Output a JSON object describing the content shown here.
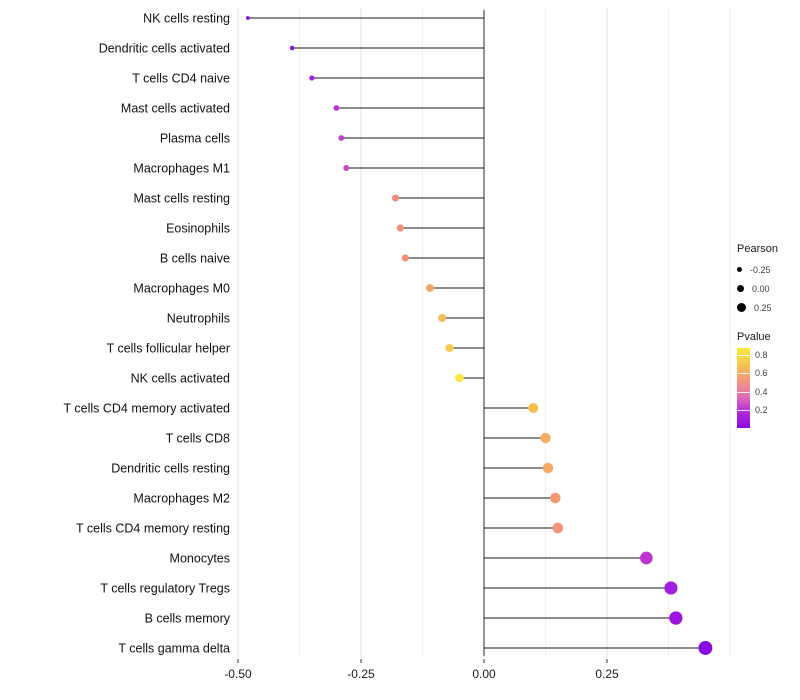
{
  "chart_data": {
    "type": "lollipop",
    "title": "",
    "xlabel": "",
    "ylabel": "",
    "x_ticks": [
      -0.5,
      -0.25,
      0,
      0.25
    ],
    "x_tick_labels": [
      "-0.50",
      "-0.25",
      "0.00",
      "0.25"
    ],
    "x_minor_ticks": [
      -0.375,
      -0.125,
      0.125,
      0.375,
      0.5
    ],
    "xlim": [
      -0.55,
      0.51
    ],
    "grid": true,
    "zero_line": true,
    "points": [
      {
        "label": "NK cells resting",
        "pearson": -0.48,
        "pvalue": 0.03,
        "color": "#8F0BE0"
      },
      {
        "label": "Dendritic cells activated",
        "pearson": -0.39,
        "pvalue": 0.06,
        "color": "#9A15DF"
      },
      {
        "label": "T cells CD4 naive",
        "pearson": -0.35,
        "pvalue": 0.1,
        "color": "#A922DB"
      },
      {
        "label": "Mast cells activated",
        "pearson": -0.3,
        "pvalue": 0.13,
        "color": "#B933CF"
      },
      {
        "label": "Plasma cells",
        "pearson": -0.29,
        "pvalue": 0.15,
        "color": "#C13FC9"
      },
      {
        "label": "Macrophages M1",
        "pearson": -0.28,
        "pvalue": 0.17,
        "color": "#C847C2"
      },
      {
        "label": "Mast cells resting",
        "pearson": -0.18,
        "pvalue": 0.47,
        "color": "#EE8C7D"
      },
      {
        "label": "Eosinophils",
        "pearson": -0.17,
        "pvalue": 0.5,
        "color": "#F0907A"
      },
      {
        "label": "B cells naive",
        "pearson": -0.16,
        "pvalue": 0.52,
        "color": "#F19377"
      },
      {
        "label": "Macrophages M0",
        "pearson": -0.11,
        "pvalue": 0.6,
        "color": "#F4A568"
      },
      {
        "label": "Neutrophils",
        "pearson": -0.085,
        "pvalue": 0.68,
        "color": "#F6BA58"
      },
      {
        "label": "T cells follicular helper",
        "pearson": -0.07,
        "pvalue": 0.75,
        "color": "#F7CC4C"
      },
      {
        "label": "NK cells activated",
        "pearson": -0.05,
        "pvalue": 0.82,
        "color": "#F8E83B"
      },
      {
        "label": "T cells CD4 memory activated",
        "pearson": 0.1,
        "pvalue": 0.7,
        "color": "#F6C054"
      },
      {
        "label": "T cells CD8",
        "pearson": 0.125,
        "pvalue": 0.63,
        "color": "#F5AE62"
      },
      {
        "label": "Dendritic cells resting",
        "pearson": 0.13,
        "pvalue": 0.61,
        "color": "#F4A966"
      },
      {
        "label": "Macrophages M2",
        "pearson": 0.145,
        "pvalue": 0.56,
        "color": "#F29C72"
      },
      {
        "label": "T cells CD4 memory resting",
        "pearson": 0.15,
        "pvalue": 0.53,
        "color": "#F19578"
      },
      {
        "label": "Monocytes",
        "pearson": 0.33,
        "pvalue": 0.14,
        "color": "#BB35CE"
      },
      {
        "label": "T cells regulatory  Tregs",
        "pearson": 0.38,
        "pvalue": 0.08,
        "color": "#A51DDD"
      },
      {
        "label": "B cells memory",
        "pearson": 0.39,
        "pvalue": 0.06,
        "color": "#9B14DF"
      },
      {
        "label": "T cells gamma delta",
        "pearson": 0.45,
        "pvalue": 0.02,
        "color": "#8A08E2"
      }
    ],
    "legend": {
      "size": {
        "title": "Pearson",
        "entries": [
          {
            "label": "-0.25",
            "value": -0.25
          },
          {
            "label": "0.00",
            "value": 0
          },
          {
            "label": "0.25",
            "value": 0.25
          }
        ]
      },
      "color": {
        "title": "Pvalue",
        "ticks": [
          0.8,
          0.6,
          0.4,
          0.2
        ],
        "tick_labels": [
          "0.8",
          "0.6",
          "0.4",
          "0.2"
        ],
        "bar_top_value": 0.88,
        "bar_bottom_value": 0.0,
        "gradient": [
          "#F9E93A",
          "#F7C653",
          "#F2997B",
          "#E070B2",
          "#B42BD8",
          "#8A0BE0"
        ]
      }
    },
    "colors": {
      "stem": "#1a1a1a",
      "grid_major": "#e3e3e3",
      "grid_minor": "#f0f0f0",
      "axis_text": "#1a1a1a",
      "label_text": "#111111"
    }
  }
}
